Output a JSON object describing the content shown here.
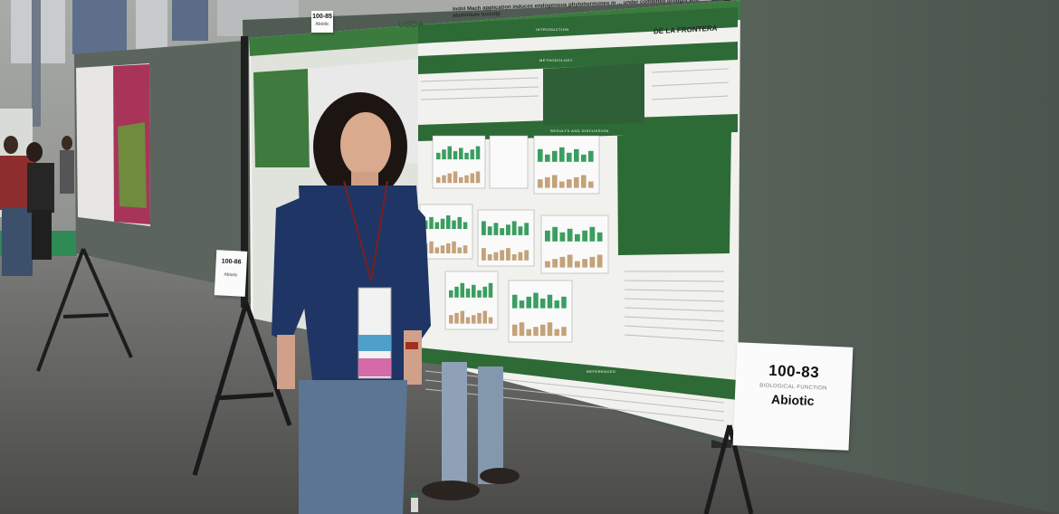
{
  "scene": {
    "description_tag": "poster-session-photo"
  },
  "poster": {
    "title_text": "Indol Mach application induces endogenous phytohormones in ... under combined drought and aluminium toxicity",
    "logo_text": "USDA",
    "header_right": "DE LA FRONTERA",
    "sections": {
      "intro": "Introduction",
      "methodology": "Methodology",
      "results": "Results and Discussion",
      "references": "References"
    }
  },
  "signs": {
    "main": {
      "code": "100-83",
      "subtitle": "BIOLOGICAL FUNCTION",
      "category": "Abiotic"
    },
    "middle": {
      "code": "100-86",
      "category": "Abiotic"
    },
    "top": {
      "code": "100-85",
      "category": "Abiotic"
    }
  },
  "colors": {
    "board": "#4e5a52",
    "poster_green": "#2f6b38",
    "bar_green": "#3a9e60",
    "bar_tan": "#c4a27a",
    "floor": "#6b6b6a"
  }
}
